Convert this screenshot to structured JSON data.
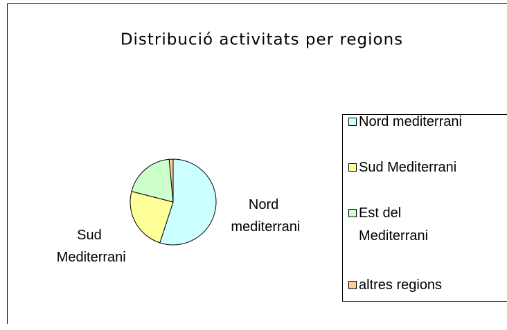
{
  "chart_data": {
    "type": "pie",
    "title": "Distribució activitats per regions",
    "categories": [
      "Nord mediterrani",
      "Sud Mediterrani",
      "Est del Mediterrani",
      "altres regions"
    ],
    "values": [
      55,
      24,
      19.5,
      1.5
    ],
    "colors": [
      "#ccffff",
      "#ffff99",
      "#ccffcc",
      "#ffcc99"
    ],
    "legend": "right"
  }
}
